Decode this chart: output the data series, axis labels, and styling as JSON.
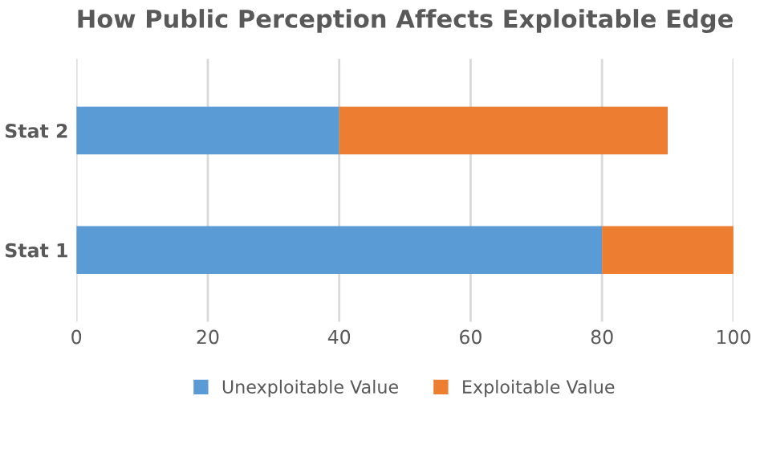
{
  "chart_data": {
    "type": "bar",
    "title": "How Public Perception Affects Exploitable Edge",
    "orientation": "horizontal",
    "stacked": true,
    "categories": [
      "Stat 2",
      "Stat 1"
    ],
    "series": [
      {
        "name": "Unexploitable Value",
        "color": "#5b9bd5",
        "values": [
          40,
          80
        ]
      },
      {
        "name": "Exploitable Value",
        "color": "#ed7d31",
        "values": [
          50,
          20
        ]
      }
    ],
    "xlim": [
      0,
      100
    ],
    "xticks": [
      0,
      20,
      40,
      60,
      80,
      100
    ],
    "grid": "x",
    "legend": "bottom"
  }
}
